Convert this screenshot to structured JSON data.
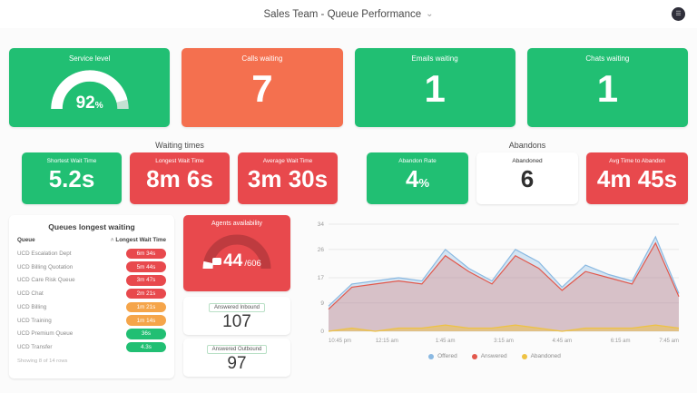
{
  "colors": {
    "green": "#21bf73",
    "orange": "#f4704f",
    "red": "#e8494d",
    "amber": "#f5a54a",
    "white": "#ffffff"
  },
  "header": {
    "title": "Sales Team - Queue Performance",
    "dropdown_icon": "⌄",
    "menu_icon": "☰"
  },
  "kpis": [
    {
      "label": "Service level",
      "value": "92",
      "unit": "%",
      "percent": 92,
      "color": "green"
    },
    {
      "label": "Calls waiting",
      "value": "7",
      "color": "orange"
    },
    {
      "label": "Emails waiting",
      "value": "1",
      "color": "green"
    },
    {
      "label": "Chats waiting",
      "value": "1",
      "color": "green"
    }
  ],
  "waiting_times": {
    "title": "Waiting times",
    "cards": [
      {
        "label": "Shortest Wait Time",
        "value": "5.2s",
        "color": "green"
      },
      {
        "label": "Longest Wait Time",
        "value": "8m 6s",
        "color": "red"
      },
      {
        "label": "Average Wait Time",
        "value": "3m 30s",
        "color": "red"
      }
    ]
  },
  "abandons": {
    "title": "Abandons",
    "cards": [
      {
        "label": "Abandon Rate",
        "value": "4",
        "unit": "%",
        "color": "green"
      },
      {
        "label": "Abandoned",
        "value": "6",
        "color": "white"
      },
      {
        "label": "Avg Time to Abandon",
        "value": "4m 45s",
        "color": "red"
      }
    ]
  },
  "queues_table": {
    "title": "Queues longest waiting",
    "sort_icon": "˄",
    "columns": [
      "Queue",
      "Longest Wait Time"
    ],
    "rows": [
      {
        "queue": "UCD Escalation Dept",
        "time": "6m 34s",
        "level": "red"
      },
      {
        "queue": "UCD Billing Quotation",
        "time": "5m 44s",
        "level": "red"
      },
      {
        "queue": "UCD Care Risk Queue",
        "time": "3m 47s",
        "level": "red"
      },
      {
        "queue": "UCD Chat",
        "time": "2m 21s",
        "level": "red"
      },
      {
        "queue": "UCD Billing",
        "time": "1m 21s",
        "level": "amber"
      },
      {
        "queue": "UCD Training",
        "time": "1m 14s",
        "level": "amber"
      },
      {
        "queue": "UCD Premium Queue",
        "time": "36s",
        "level": "green"
      },
      {
        "queue": "UCD Transfer",
        "time": "4.3s",
        "level": "green"
      }
    ],
    "footer": "Showing 8 of 14 rows"
  },
  "agents": {
    "label": "Agents availability",
    "value": "44",
    "total": "/606",
    "percent": 7,
    "color": "red"
  },
  "answered_inbound": {
    "label": "Answered Inbound",
    "value": "107"
  },
  "answered_outbound": {
    "label": "Answered Outbound",
    "value": "97"
  },
  "chart_data": {
    "type": "area",
    "ylim": [
      0,
      34
    ],
    "yticks": [
      0,
      9,
      17,
      26,
      34
    ],
    "x_labels": [
      "10:45 pm",
      "12:15 am",
      "1:45 am",
      "3:15 am",
      "4:45 am",
      "6:15 am",
      "7:45 am"
    ],
    "grid": true,
    "legend_position": "bottom",
    "series": [
      {
        "name": "Offered",
        "color": "#8ab9e2",
        "fill": "rgba(138,185,226,0.35)",
        "values": [
          8,
          15,
          16,
          17,
          16,
          26,
          20,
          16,
          26,
          22,
          14,
          21,
          18,
          16,
          30,
          12
        ]
      },
      {
        "name": "Answered",
        "color": "#e2584c",
        "fill": "rgba(226,88,76,0.25)",
        "values": [
          7,
          14,
          15,
          16,
          15,
          24,
          19,
          15,
          24,
          20,
          13,
          19,
          17,
          15,
          28,
          11
        ]
      },
      {
        "name": "Abandoned",
        "color": "#eec243",
        "fill": "rgba(238,194,67,0.5)",
        "values": [
          0,
          1,
          0,
          1,
          1,
          2,
          1,
          1,
          2,
          1,
          0,
          1,
          1,
          1,
          2,
          1
        ]
      }
    ]
  }
}
